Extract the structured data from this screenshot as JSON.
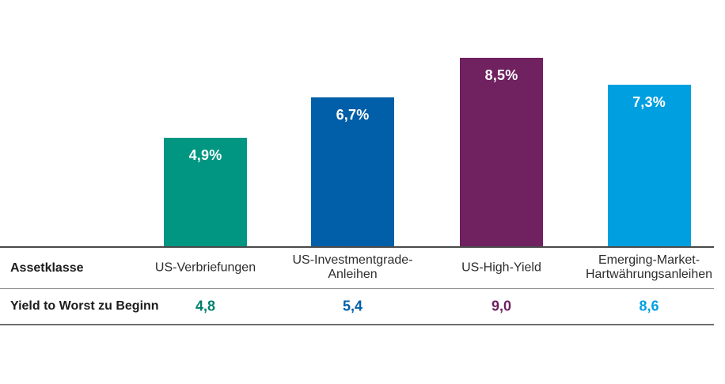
{
  "chart_data": {
    "type": "bar",
    "categories": [
      "US-Verbriefungen",
      "US-Investmentgrade-\nAnleihen",
      "US-High-Yield",
      "Emerging-Market-\nHartwährungsanleihen"
    ],
    "values": [
      4.9,
      6.7,
      8.5,
      7.3
    ],
    "bar_labels": [
      "4,9%",
      "6,7%",
      "8,5%",
      "7,3%"
    ],
    "colors": [
      "#009681",
      "#005fa8",
      "#6f2160",
      "#009fe0"
    ],
    "title": "",
    "xlabel": "Assetklasse",
    "ylabel": "",
    "ylim": [
      0,
      11.1
    ],
    "grid": false,
    "legend": "none",
    "value_labels_position": "inside-top",
    "axis_visible": false
  },
  "table": {
    "assetklasse_label": "Assetklasse",
    "yield_label": "Yield to Worst zu Beginn",
    "yield_values": [
      "4,8",
      "5,4",
      "9,0",
      "8,6"
    ],
    "yield_value_colors": [
      "#00806e",
      "#005fa8",
      "#6f2160",
      "#009fe0"
    ]
  }
}
